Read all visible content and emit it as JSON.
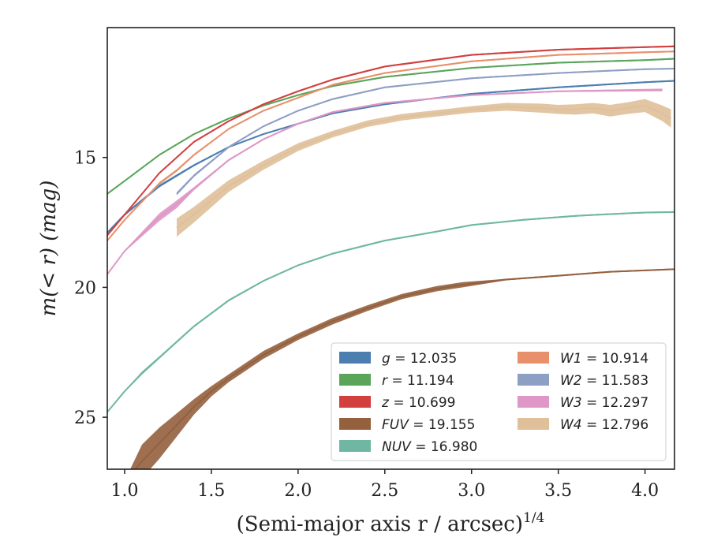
{
  "chart_data": {
    "type": "line",
    "title": "",
    "xlabel_main": "(Semi-major axis r / arcsec)",
    "xlabel_sup": "1/4",
    "ylabel": "m(< r) (mag)",
    "xlim": [
      0.9,
      4.17
    ],
    "ylim": [
      27.0,
      10.0
    ],
    "y_inverted": true,
    "grid": false,
    "legend_position": "lower-right",
    "xticks": [
      1.0,
      1.5,
      2.0,
      2.5,
      3.0,
      3.5,
      4.0
    ],
    "xtick_labels": [
      "1.0",
      "1.5",
      "2.0",
      "2.5",
      "3.0",
      "3.5",
      "4.0"
    ],
    "yticks": [
      15,
      20,
      25
    ],
    "ytick_labels": [
      "15",
      "20",
      "25"
    ],
    "series": [
      {
        "name": "g = 12.035",
        "sym": "g",
        "val": "12.035",
        "color": "#4c7eb0",
        "x": [
          0.9,
          1.0,
          1.2,
          1.4,
          1.6,
          1.8,
          2.0,
          2.2,
          2.5,
          3.0,
          3.5,
          4.0,
          4.17
        ],
        "y": [
          17.9,
          17.2,
          16.1,
          15.3,
          14.6,
          14.1,
          13.7,
          13.3,
          12.95,
          12.55,
          12.3,
          12.1,
          12.05
        ],
        "width": [
          0.1,
          0.1,
          0.1,
          0.08,
          0.06,
          0.06,
          0.06,
          0.06,
          0.06,
          0.06,
          0.06,
          0.06,
          0.06
        ]
      },
      {
        "name": "r = 11.194",
        "sym": "r",
        "val": "11.194",
        "color": "#5aa55a",
        "x": [
          0.9,
          1.0,
          1.2,
          1.4,
          1.6,
          1.8,
          2.0,
          2.2,
          2.5,
          3.0,
          3.5,
          4.0,
          4.17
        ],
        "y": [
          16.4,
          15.9,
          14.9,
          14.1,
          13.5,
          13.0,
          12.6,
          12.25,
          11.9,
          11.55,
          11.35,
          11.25,
          11.2
        ],
        "width": [
          0.06,
          0.06,
          0.06,
          0.06,
          0.06,
          0.06,
          0.06,
          0.06,
          0.06,
          0.06,
          0.06,
          0.06,
          0.06
        ]
      },
      {
        "name": "z = 10.699",
        "sym": "z",
        "val": "10.699",
        "color": "#d23f3f",
        "x": [
          0.9,
          1.0,
          1.2,
          1.4,
          1.6,
          1.8,
          2.0,
          2.2,
          2.5,
          3.0,
          3.5,
          4.0,
          4.17
        ],
        "y": [
          18.0,
          17.2,
          15.6,
          14.4,
          13.6,
          12.95,
          12.45,
          12.0,
          11.5,
          11.05,
          10.85,
          10.75,
          10.72
        ],
        "width": [
          0.06,
          0.06,
          0.06,
          0.06,
          0.06,
          0.06,
          0.06,
          0.06,
          0.06,
          0.06,
          0.06,
          0.06,
          0.06
        ]
      },
      {
        "name": "FUV = 19.155",
        "sym": "FUV",
        "val": "19.155",
        "color": "#94603e",
        "x": [
          0.9,
          1.0,
          1.1,
          1.2,
          1.3,
          1.4,
          1.5,
          1.6,
          1.8,
          2.0,
          2.2,
          2.4,
          2.6,
          2.8,
          2.95,
          3.2,
          3.5,
          3.8,
          4.17
        ],
        "y": [
          28.2,
          27.5,
          26.7,
          26.0,
          25.3,
          24.6,
          24.0,
          23.5,
          22.6,
          21.9,
          21.3,
          20.8,
          20.35,
          20.05,
          19.9,
          19.7,
          19.55,
          19.4,
          19.3
        ],
        "width": [
          0.1,
          0.1,
          1.3,
          1.2,
          0.9,
          0.6,
          0.4,
          0.3,
          0.3,
          0.25,
          0.25,
          0.22,
          0.2,
          0.2,
          0.2,
          0.06,
          0.06,
          0.06,
          0.06
        ]
      },
      {
        "name": "NUV = 16.980",
        "sym": "NUV",
        "val": "16.980",
        "color": "#6fb7a3",
        "x": [
          0.9,
          1.0,
          1.1,
          1.2,
          1.4,
          1.6,
          1.8,
          2.0,
          2.2,
          2.5,
          2.8,
          3.0,
          3.3,
          3.6,
          3.8,
          4.0,
          4.17
        ],
        "y": [
          24.8,
          24.0,
          23.3,
          22.7,
          21.5,
          20.5,
          19.75,
          19.15,
          18.7,
          18.2,
          17.85,
          17.6,
          17.4,
          17.25,
          17.18,
          17.12,
          17.1
        ],
        "width": [
          0.06,
          0.06,
          0.12,
          0.1,
          0.08,
          0.08,
          0.06,
          0.06,
          0.06,
          0.06,
          0.06,
          0.06,
          0.06,
          0.06,
          0.06,
          0.06,
          0.06
        ]
      },
      {
        "name": "W1 = 10.914",
        "sym": "W1",
        "val": "10.914",
        "color": "#e8906c",
        "x": [
          0.9,
          1.0,
          1.2,
          1.3,
          1.4,
          1.6,
          1.8,
          2.0,
          2.2,
          2.5,
          3.0,
          3.5,
          4.0,
          4.17
        ],
        "y": [
          18.2,
          17.4,
          16.0,
          15.5,
          14.9,
          13.9,
          13.2,
          12.7,
          12.2,
          11.75,
          11.3,
          11.05,
          10.95,
          10.92
        ],
        "width": [
          0.06,
          0.06,
          0.1,
          0.1,
          0.08,
          0.06,
          0.06,
          0.06,
          0.06,
          0.06,
          0.06,
          0.06,
          0.06,
          0.06
        ]
      },
      {
        "name": "W2 = 11.583",
        "sym": "W2",
        "val": "11.583",
        "color": "#8e9fc4",
        "x": [
          1.3,
          1.4,
          1.6,
          1.8,
          2.0,
          2.2,
          2.5,
          3.0,
          3.5,
          4.0,
          4.17
        ],
        "y": [
          16.4,
          15.7,
          14.6,
          13.8,
          13.2,
          12.75,
          12.3,
          11.95,
          11.75,
          11.6,
          11.58
        ],
        "width": [
          0.12,
          0.1,
          0.08,
          0.06,
          0.06,
          0.06,
          0.06,
          0.06,
          0.06,
          0.06,
          0.06
        ]
      },
      {
        "name": "W3 = 12.297",
        "sym": "W3",
        "val": "12.297",
        "color": "#de97c6",
        "x": [
          0.9,
          1.0,
          1.2,
          1.3,
          1.4,
          1.6,
          1.8,
          2.0,
          2.2,
          2.5,
          3.0,
          3.5,
          4.1
        ],
        "y": [
          19.5,
          18.6,
          17.3,
          16.8,
          16.2,
          15.1,
          14.3,
          13.7,
          13.25,
          12.9,
          12.6,
          12.45,
          12.4
        ],
        "width": [
          0.06,
          0.06,
          0.3,
          0.3,
          0.12,
          0.08,
          0.06,
          0.06,
          0.06,
          0.06,
          0.06,
          0.06,
          0.1
        ]
      },
      {
        "name": "W4 = 12.796",
        "sym": "W4",
        "val": "12.796",
        "color": "#dfc09a",
        "x": [
          1.3,
          1.4,
          1.6,
          1.8,
          2.0,
          2.2,
          2.4,
          2.6,
          2.8,
          3.0,
          3.2,
          3.4,
          3.5,
          3.6,
          3.7,
          3.8,
          3.9,
          4.0,
          4.1,
          4.15
        ],
        "y": [
          17.7,
          17.2,
          16.1,
          15.3,
          14.6,
          14.1,
          13.7,
          13.45,
          13.3,
          13.15,
          13.05,
          13.1,
          13.15,
          13.15,
          13.1,
          13.2,
          13.1,
          13.0,
          13.3,
          13.5
        ],
        "width": [
          0.7,
          0.6,
          0.45,
          0.35,
          0.3,
          0.25,
          0.25,
          0.25,
          0.25,
          0.25,
          0.3,
          0.35,
          0.35,
          0.4,
          0.4,
          0.45,
          0.45,
          0.5,
          0.6,
          0.7
        ]
      }
    ],
    "legend_layout": [
      [
        "g = 12.035",
        "r = 11.194",
        "z = 10.699",
        "FUV = 19.155",
        "NUV = 16.980"
      ],
      [
        "W1 = 10.914",
        "W2 = 11.583",
        "W3 = 12.297",
        "W4 = 12.796"
      ]
    ]
  }
}
